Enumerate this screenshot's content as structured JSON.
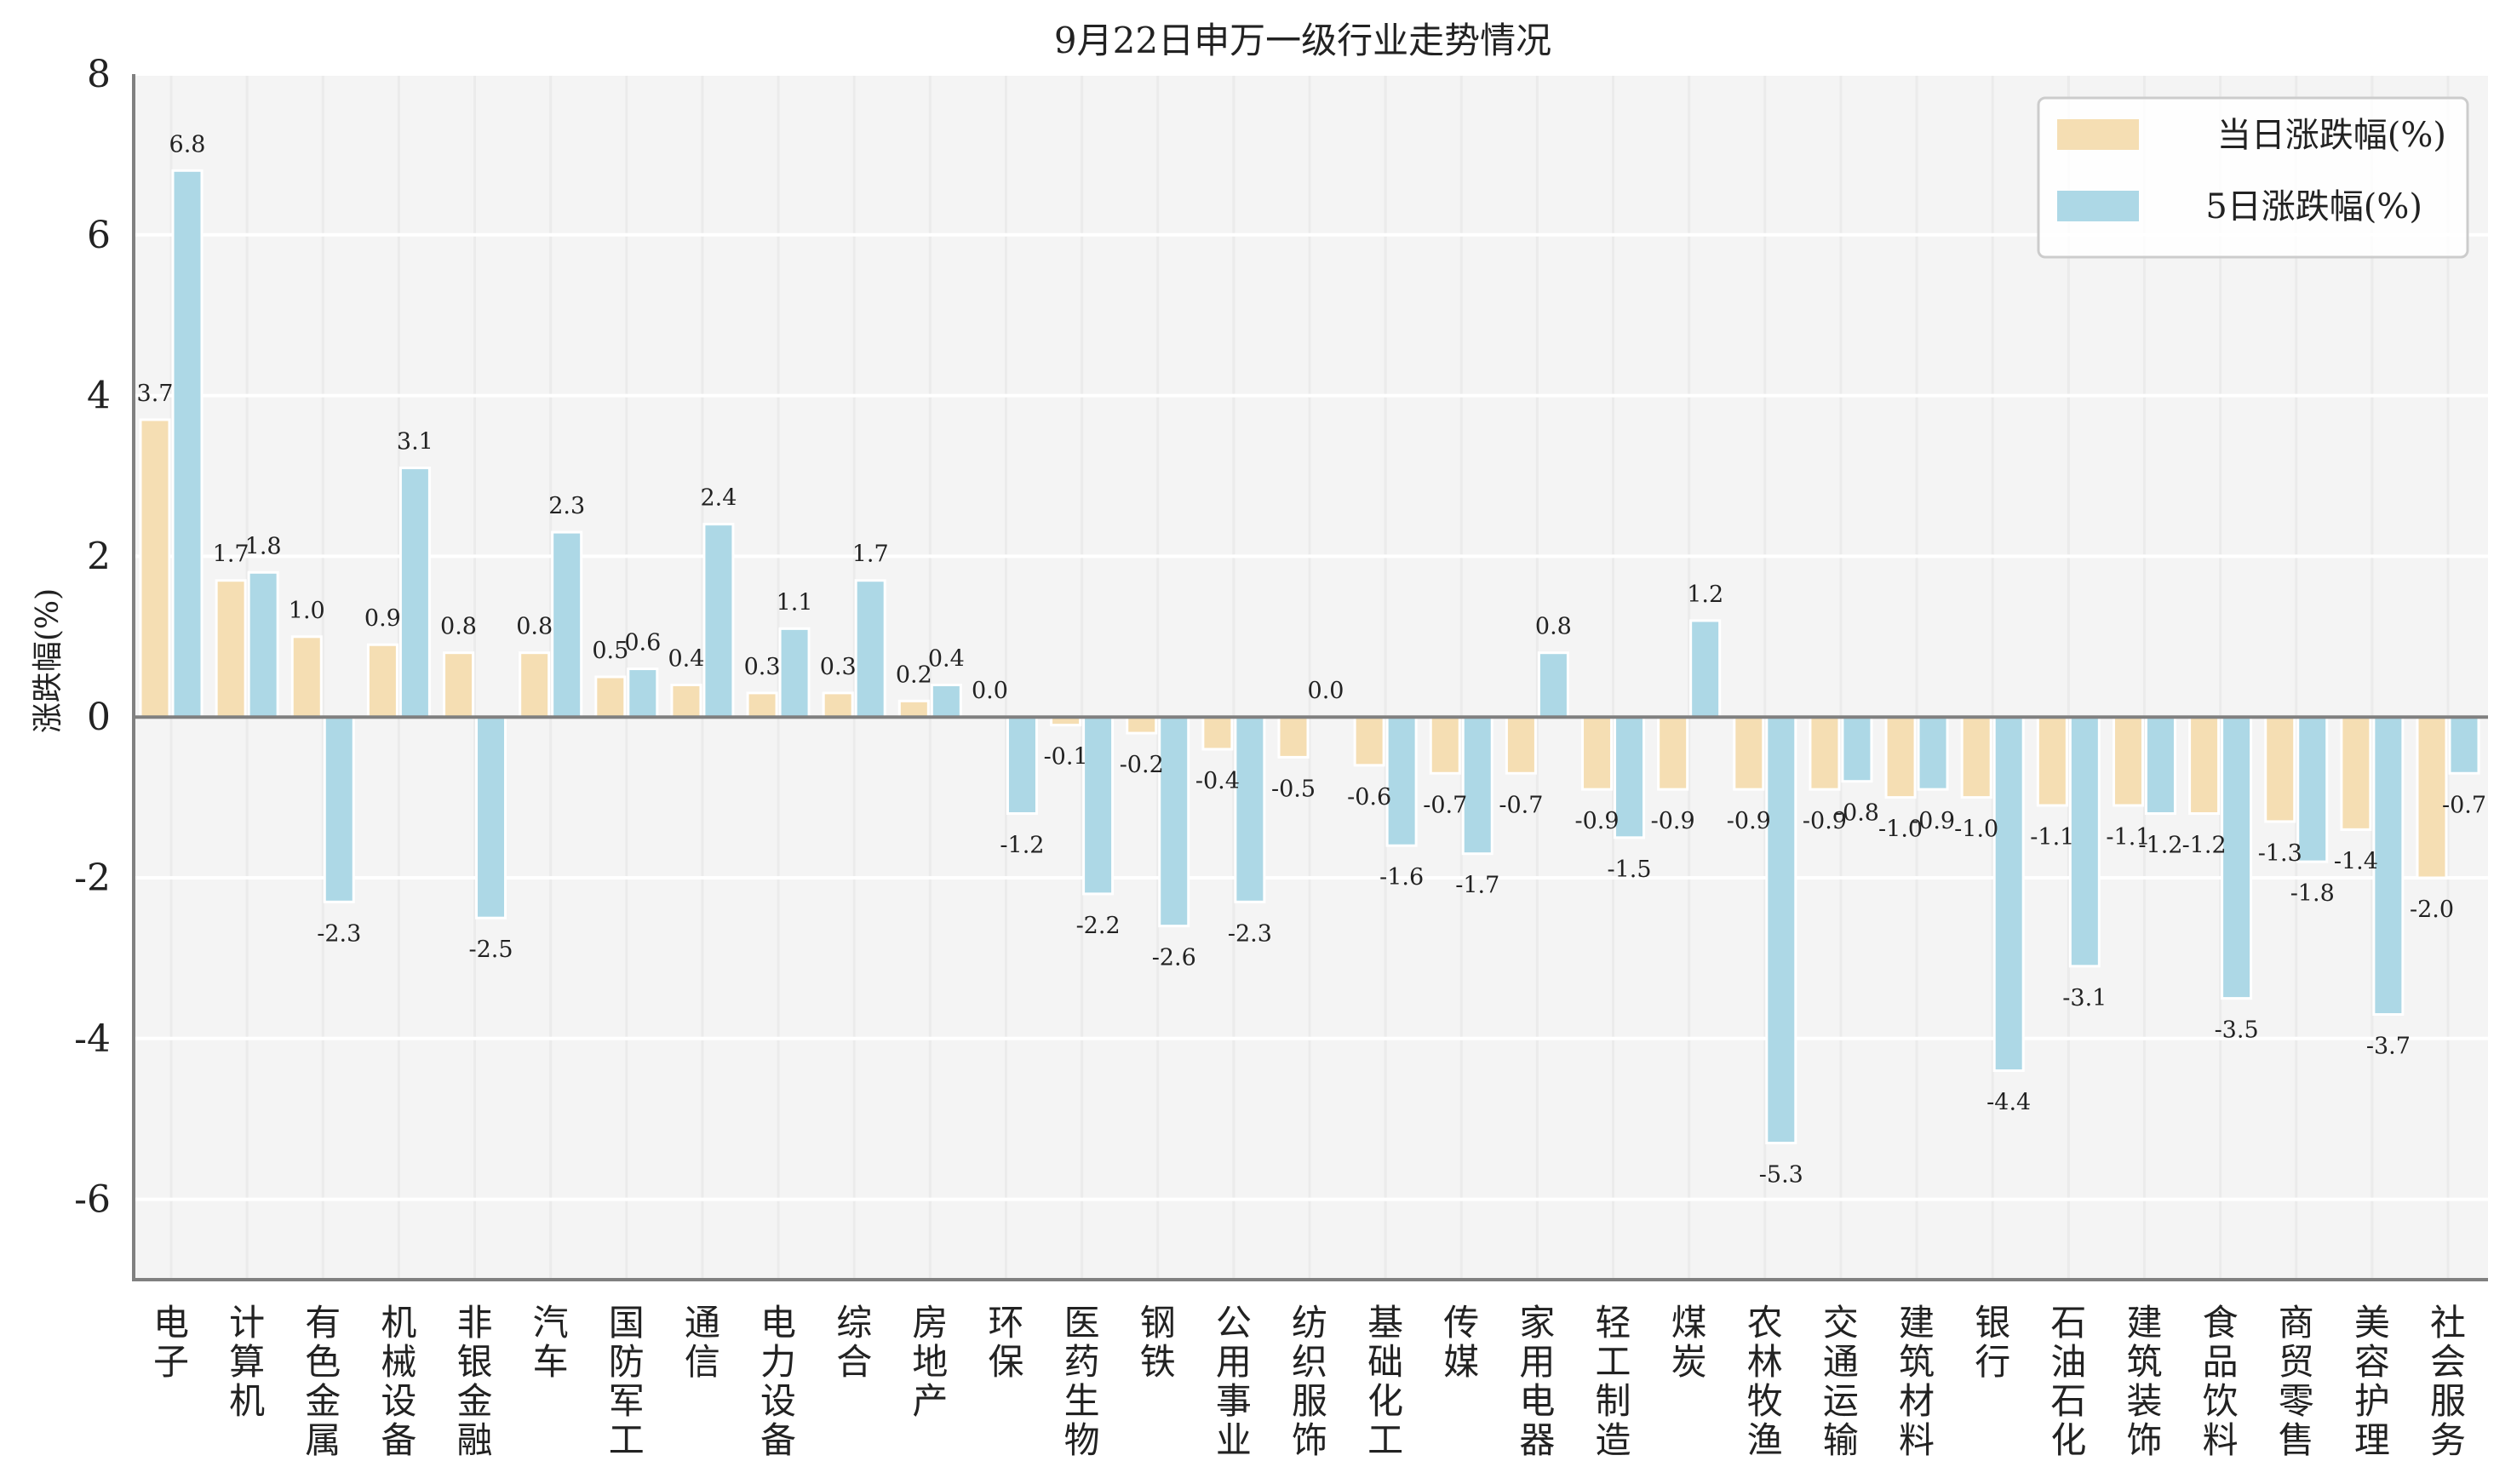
{
  "chart_data": {
    "type": "bar",
    "title": "9月22日申万一级行业走势情况",
    "xlabel": "",
    "ylabel": "涨跌幅(%)",
    "ylim": [
      -7,
      8
    ],
    "yticks": [
      -6,
      -4,
      -2,
      0,
      2,
      4,
      6,
      8
    ],
    "ytick_labels": [
      "-6",
      "-4",
      "-2",
      "0",
      "2",
      "4",
      "6",
      "8"
    ],
    "grid": true,
    "legend_position": "top-right",
    "categories": [
      "电子",
      "计算机",
      "有色金属",
      "机械设备",
      "非银金融",
      "汽车",
      "国防军工",
      "通信",
      "电力设备",
      "综合",
      "房地产",
      "环保",
      "医药生物",
      "钢铁",
      "公用事业",
      "纺织服饰",
      "基础化工",
      "传媒",
      "家用电器",
      "轻工制造",
      "煤炭",
      "农林牧渔",
      "交通运输",
      "建筑材料",
      "银行",
      "石油石化",
      "建筑装饰",
      "食品饮料",
      "商贸零售",
      "美容护理",
      "社会服务"
    ],
    "series": [
      {
        "name": "当日涨跌幅(%)",
        "color": "#F5DEB3",
        "values": [
          3.7,
          1.7,
          1.0,
          0.9,
          0.8,
          0.8,
          0.5,
          0.4,
          0.3,
          0.3,
          0.2,
          0.0,
          -0.1,
          -0.2,
          -0.4,
          -0.5,
          -0.6,
          -0.7,
          -0.7,
          -0.9,
          -0.9,
          -0.9,
          -0.9,
          -1.0,
          -1.0,
          -1.1,
          -1.1,
          -1.2,
          -1.3,
          -1.4,
          -2.0
        ],
        "labels": [
          "3.7",
          "1.7",
          "1.0",
          "0.9",
          "0.8",
          "0.8",
          "0.5",
          "0.4",
          "0.3",
          "0.3",
          "0.2",
          "0.0",
          "-0.1",
          "-0.2",
          "-0.4",
          "-0.5",
          "-0.6",
          "-0.7",
          "-0.7",
          "-0.9",
          "-0.9",
          "-0.9",
          "-0.9",
          "-1.0",
          "-1.0",
          "-1.1",
          "-1.1",
          "-1.2",
          "-1.3",
          "-1.4",
          "-2.0"
        ]
      },
      {
        "name": "5日涨跌幅(%)",
        "color": "#ADD8E6",
        "values": [
          6.8,
          1.8,
          -2.3,
          3.1,
          -2.5,
          2.3,
          0.6,
          2.4,
          1.1,
          1.7,
          0.4,
          -1.2,
          -2.2,
          -2.6,
          -2.3,
          0.0,
          -1.6,
          -1.7,
          0.8,
          -1.5,
          1.2,
          -5.3,
          -0.8,
          -0.9,
          -4.4,
          -3.1,
          -1.2,
          -3.5,
          -1.8,
          -3.7,
          -0.7
        ],
        "labels": [
          "6.8",
          "1.8",
          "-2.3",
          "3.1",
          "-2.5",
          "2.3",
          "0.6",
          "2.4",
          "1.1",
          "1.7",
          "0.4",
          "-1.2",
          "-2.2",
          "-2.6",
          "-2.3",
          "0.0",
          "-1.6",
          "-1.7",
          "0.8",
          "-1.5",
          "1.2",
          "-5.3",
          "-0.8",
          "-0.9",
          "-4.4",
          "-3.1",
          "-1.2",
          "-3.5",
          "-1.8",
          "-3.7",
          "-0.7"
        ]
      }
    ]
  },
  "colors": {
    "plot_background": "#F4F4F4",
    "axis": "#808080"
  }
}
